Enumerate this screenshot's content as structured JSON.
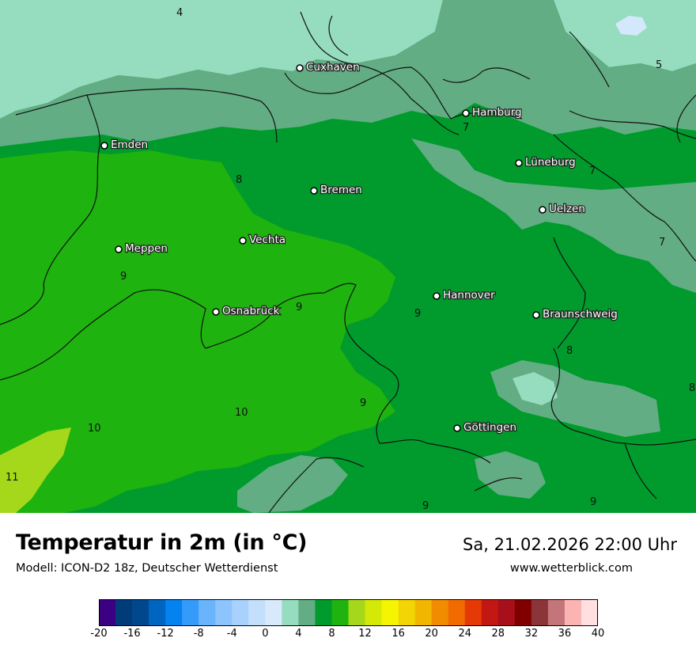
{
  "map": {
    "cities": [
      {
        "id": "cuxhaven",
        "name": "Cuxhaven"
      },
      {
        "id": "hamburg",
        "name": "Hamburg"
      },
      {
        "id": "emden",
        "name": "Emden"
      },
      {
        "id": "lueneburg",
        "name": "Lüneburg"
      },
      {
        "id": "bremen",
        "name": "Bremen"
      },
      {
        "id": "uelzen",
        "name": "Uelzen"
      },
      {
        "id": "vechta",
        "name": "Vechta"
      },
      {
        "id": "meppen",
        "name": "Meppen"
      },
      {
        "id": "hannover",
        "name": "Hannover"
      },
      {
        "id": "osnabrueck",
        "name": "Osnabrück"
      },
      {
        "id": "braunschweig",
        "name": "Braunschweig"
      },
      {
        "id": "goettingen",
        "name": "Göttingen"
      }
    ],
    "contour_labels": [
      "4",
      "5",
      "7",
      "7",
      "7",
      "8",
      "8",
      "8",
      "9",
      "9",
      "9",
      "9",
      "9",
      "9",
      "9",
      "10",
      "10",
      "11"
    ],
    "colors": {
      "t4": "#96dcbf",
      "t6": "#62ad84",
      "t8": "#009b2c",
      "t10": "#1eb30f",
      "t11": "#a5d81b",
      "lake": "#d3e8fb",
      "border": "#111111"
    }
  },
  "footer": {
    "title": "Temperatur in 2m (in °C)",
    "subtitle": "Modell: ICON-D2 18z, Deutscher Wetterdienst",
    "datetime": "Sa, 21.02.2026 22:00 Uhr",
    "website": "www.wetterblick.com"
  },
  "scale": {
    "colors": [
      "#3c0082",
      "#003c78",
      "#00478d",
      "#0064c1",
      "#0482f0",
      "#359bfa",
      "#6ab4fb",
      "#8dc4fd",
      "#a8d2fd",
      "#c4dffc",
      "#d8e9fb",
      "#96dcbf",
      "#62ad84",
      "#009b2c",
      "#1eb30f",
      "#a5d81b",
      "#d4ea06",
      "#f5f502",
      "#f3d503",
      "#f1b700",
      "#f18c00",
      "#f16b00",
      "#e63a06",
      "#c31714",
      "#a7101b",
      "#800000",
      "#8b3539",
      "#c3757a",
      "#fcb4b3",
      "#ffdfe0"
    ],
    "tick_labels": [
      "-20",
      "-16",
      "-12",
      "-8",
      "-4",
      "0",
      "4",
      "8",
      "12",
      "16",
      "20",
      "24",
      "28",
      "32",
      "36",
      "40"
    ]
  }
}
